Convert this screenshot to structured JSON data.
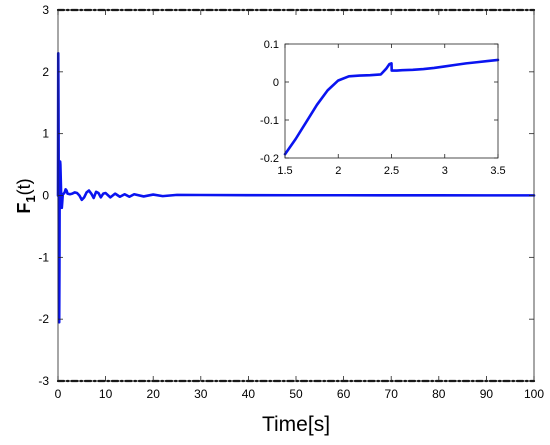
{
  "chart_data": [
    {
      "type": "line",
      "xlabel": "Time[s]",
      "ylabel_main": "F",
      "ylabel_sub": "1",
      "ylabel_suffix": "(t)",
      "xlim": [
        0,
        100
      ],
      "ylim": [
        -3,
        3
      ],
      "xticks": [
        0,
        10,
        20,
        30,
        40,
        50,
        60,
        70,
        80,
        90,
        100
      ],
      "yticks": [
        3,
        2,
        1,
        0,
        -1,
        -2,
        -3
      ],
      "grid": false,
      "colors": {
        "signal": "#0a14f0",
        "bound": "#111111"
      },
      "series": [
        {
          "style": "solid",
          "x": [
            0,
            0.05,
            0.1,
            0.15,
            0.2,
            0.25,
            0.3,
            0.35,
            0.4,
            0.45,
            0.5,
            0.6,
            0.7,
            0.8,
            0.9,
            1.0,
            1.2,
            1.4,
            1.6,
            1.8,
            2.0,
            2.5,
            3.0,
            3.5,
            4.0,
            4.5,
            5.0,
            5.5,
            6.0,
            6.5,
            7.0,
            7.5,
            8.0,
            8.5,
            9.0,
            9.5,
            10.0,
            11.0,
            12.0,
            13.0,
            14.0,
            15.0,
            16.0,
            18.0,
            20.0,
            22.0,
            25.0,
            30.0,
            40.0,
            50.0,
            60.0,
            70.0,
            80.0,
            90.0,
            100.0
          ],
          "y": [
            0,
            2.3,
            1.5,
            0.3,
            -1.6,
            -2.05,
            -1.2,
            0.2,
            0.5,
            0.55,
            0.5,
            0.2,
            -0.1,
            -0.2,
            -0.1,
            0.02,
            0.03,
            0.05,
            0.1,
            0.08,
            0.03,
            0.02,
            0.03,
            0.05,
            0.04,
            0.0,
            -0.07,
            -0.03,
            0.05,
            0.08,
            0.03,
            -0.04,
            0.06,
            0.04,
            -0.03,
            0.03,
            0.04,
            -0.03,
            0.03,
            -0.02,
            0.02,
            -0.02,
            0.02,
            -0.015,
            0.015,
            -0.01,
            0.01,
            0.008,
            0.005,
            0.004,
            0.004,
            0.003,
            0.003,
            0.002,
            0.002
          ]
        },
        {
          "style": "dash-dot",
          "x": [
            0,
            100
          ],
          "y": [
            3,
            3
          ]
        },
        {
          "style": "dash-dot",
          "x": [
            0,
            100
          ],
          "y": [
            -3,
            -3
          ]
        }
      ]
    },
    {
      "type": "line",
      "xlim": [
        1.5,
        3.5
      ],
      "ylim": [
        -0.2,
        0.1
      ],
      "xticks": [
        1.5,
        2,
        2.5,
        3,
        3.5
      ],
      "xtick_labels": [
        "1.5",
        "2",
        "2.5",
        "3",
        "3.5"
      ],
      "yticks": [
        0.1,
        0,
        -0.1,
        -0.2
      ],
      "ytick_labels": [
        "0.1",
        "0",
        "-0.1",
        "-0.2"
      ],
      "grid": false,
      "series": [
        {
          "x": [
            1.5,
            1.6,
            1.7,
            1.8,
            1.9,
            2.0,
            2.1,
            2.2,
            2.3,
            2.4,
            2.45,
            2.48,
            2.5,
            2.502,
            2.55,
            2.6,
            2.7,
            2.8,
            2.9,
            3.0,
            3.1,
            3.2,
            3.3,
            3.4,
            3.5
          ],
          "y": [
            -0.19,
            -0.15,
            -0.105,
            -0.06,
            -0.022,
            0.004,
            0.015,
            0.017,
            0.018,
            0.02,
            0.035,
            0.047,
            0.049,
            0.03,
            0.03,
            0.031,
            0.032,
            0.034,
            0.037,
            0.041,
            0.045,
            0.049,
            0.052,
            0.055,
            0.058
          ]
        }
      ]
    }
  ]
}
